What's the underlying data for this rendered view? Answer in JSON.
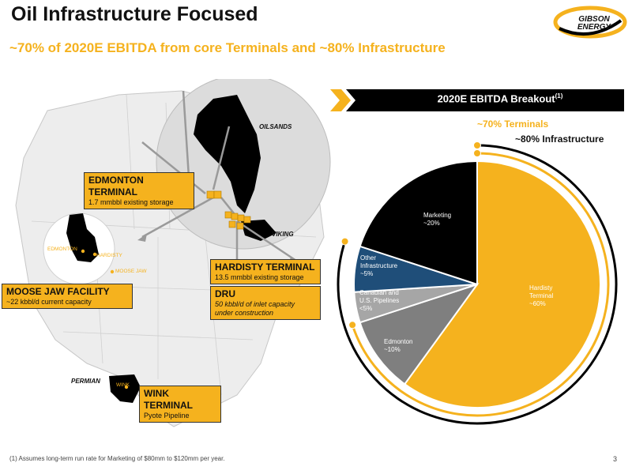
{
  "header": {
    "title": "Oil Infrastructure Focused",
    "subtitle": "~70% of 2020E EBITDA from core Terminals and ~80% Infrastructure",
    "logo_line1": "GIBSON",
    "logo_line2": "ENERGY"
  },
  "map": {
    "region_labels": {
      "oilsands": "OILSANDS",
      "viking": "VIKING",
      "permian": "PERMIAN"
    },
    "city_labels": {
      "edmonton": "EDMONTON",
      "hardisty": "HARDISTY",
      "moose_jaw": "MOOSE JAW",
      "wink": "WINK"
    },
    "callouts": {
      "edmonton": {
        "title": "EDMONTON TERMINAL",
        "detail": "1.7 mmbbl existing storage"
      },
      "hardisty": {
        "title": "HARDISTY TERMINAL",
        "detail": "13.5 mmbbl existing storage"
      },
      "dru": {
        "title": "DRU",
        "detail_line1": "50 kbbl/d of inlet capacity",
        "detail_line2": "under construction"
      },
      "moose_jaw": {
        "title": "MOOSE JAW FACILITY",
        "detail": "~22 kbbl/d current capacity"
      },
      "wink": {
        "title": "WINK TERMINAL",
        "detail": "Pyote Pipeline"
      }
    }
  },
  "breakout": {
    "title": "2020E EBITDA Breakout",
    "title_sup": "(1)",
    "terminals_label": "~70% Terminals",
    "infrastructure_label": "~80% Infrastructure"
  },
  "chart_data": {
    "type": "pie",
    "title": "2020E EBITDA Breakout",
    "slices": [
      {
        "name": "Hardisty Terminal",
        "label_line1": "Hardisty",
        "label_line2": "Terminal",
        "value_label": "~60%",
        "value": 60,
        "color": "#F5B21E"
      },
      {
        "name": "Edmonton",
        "label_line1": "Edmonton",
        "label_line2": "",
        "value_label": "~10%",
        "value": 10,
        "color": "#7F7F7F"
      },
      {
        "name": "Canadian and U.S. Pipelines",
        "label_line1": "Canadian and",
        "label_line2": "U.S. Pipelines",
        "value_label": "<5%",
        "value": 4,
        "color": "#A6A6A6"
      },
      {
        "name": "Other Infrastructure",
        "label_line1": "Other",
        "label_line2": "Infrastructure",
        "value_label": "~5%",
        "value": 6,
        "color": "#1F4E79"
      },
      {
        "name": "Marketing",
        "label_line1": "Marketing",
        "label_line2": "",
        "value_label": "~20%",
        "value": 20,
        "color": "#000000"
      }
    ]
  },
  "footer": {
    "footnote": "(1) Assumes long-term run rate for Marketing of $80mm to $120mm per year.",
    "page_number": "3"
  },
  "colors": {
    "accent": "#F5B21E",
    "dark": "#000000",
    "navy": "#1F4E79"
  }
}
